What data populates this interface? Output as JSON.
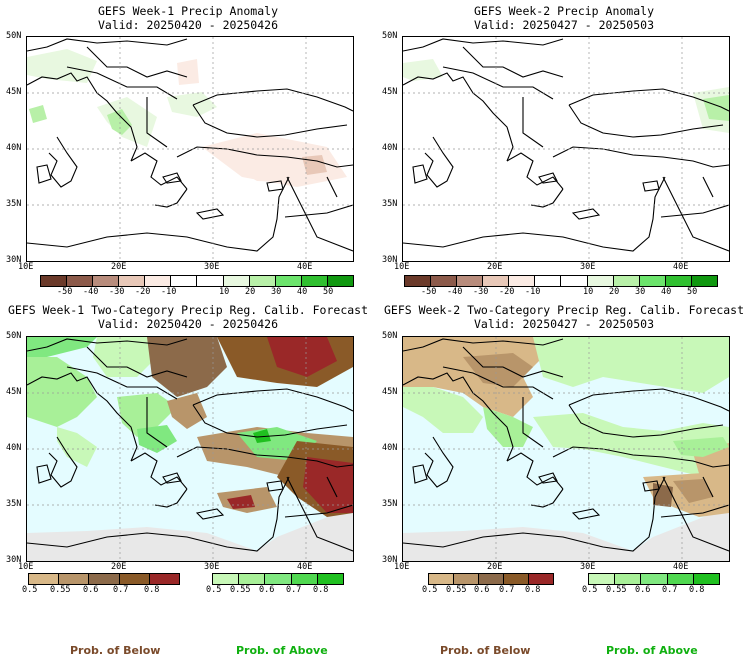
{
  "panels": [
    {
      "title": "GEFS Week-1 Precip Anomaly",
      "valid": "Valid: 20250420 - 20250426"
    },
    {
      "title": "GEFS Week-2 Precip Anomaly",
      "valid": "Valid: 20250427 - 20250503"
    },
    {
      "title": "GEFS Week-1 Two-Category Precip Reg. Calib. Forecast",
      "valid": "Valid: 20250420 - 20250426"
    },
    {
      "title": "GEFS Week-2 Two-Category Precip Reg. Calib. Forecast",
      "valid": "Valid: 20250427 - 20250503"
    }
  ],
  "axes": {
    "lat_labels": [
      "50N",
      "45N",
      "40N",
      "35N",
      "30N"
    ],
    "lon_labels": [
      "10E",
      "20E",
      "30E",
      "40E"
    ]
  },
  "anomaly_colorbar": {
    "colors": [
      "#6b3a2a",
      "#8c5a4a",
      "#b88c7c",
      "#e8c8b8",
      "#fbebe4",
      "#ffffff",
      "#ffffff",
      "#e8f8e0",
      "#b8f0a8",
      "#6ce46c",
      "#30c030",
      "#109810"
    ],
    "labels": [
      "-50",
      "-40",
      "-30",
      "-20",
      "-10",
      "10",
      "20",
      "30",
      "40",
      "50"
    ]
  },
  "below_colorbar": {
    "colors": [
      "#d8b888",
      "#b8956a",
      "#8c6a4a",
      "#8a5a28",
      "#9a2828"
    ],
    "labels": [
      "0.5",
      "0.55",
      "0.6",
      "0.7",
      "0.8"
    ]
  },
  "above_colorbar": {
    "colors": [
      "#c8f8b8",
      "#a8f098",
      "#80e880",
      "#50d850",
      "#20c020"
    ],
    "labels": [
      "0.5",
      "0.55",
      "0.6",
      "0.7",
      "0.8"
    ]
  },
  "legend": {
    "below": "Prob. of Below",
    "above": "Prob. of Above",
    "below_color": "#7a4a2a",
    "above_color": "#10b010"
  },
  "map_colors": {
    "water_shaded": "#e4fcff",
    "no_data": "#e8e8e8"
  }
}
